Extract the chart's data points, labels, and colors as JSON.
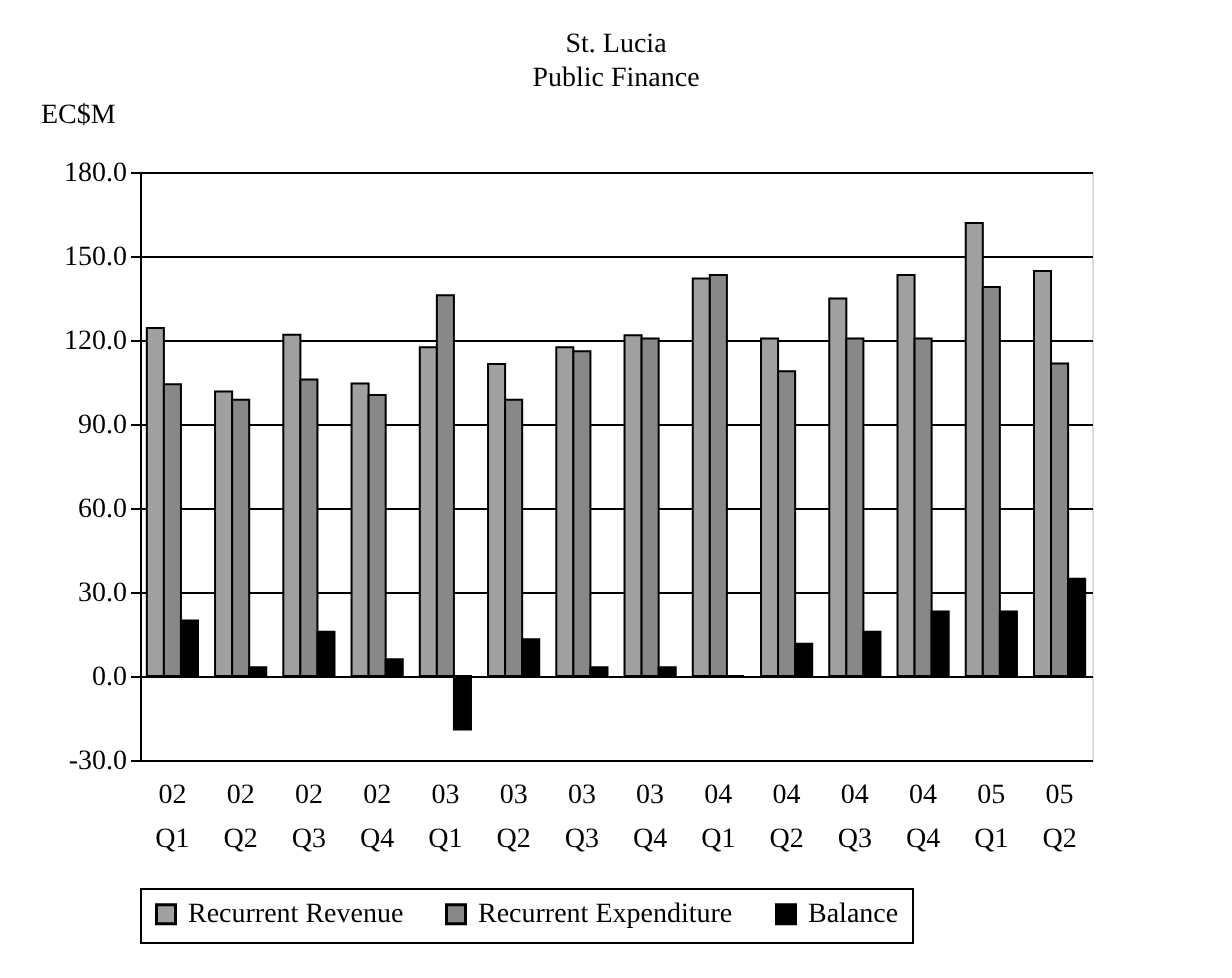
{
  "chart_data": {
    "type": "bar",
    "title": "St. Lucia",
    "subtitle": "Public Finance",
    "ylabel": "EC$M",
    "categories": [
      "02 Q1",
      "02 Q2",
      "02 Q3",
      "02 Q4",
      "03 Q1",
      "03 Q2",
      "03 Q3",
      "03 Q4",
      "04 Q1",
      "04 Q2",
      "04 Q3",
      "04 Q4",
      "05 Q1",
      "05 Q2"
    ],
    "series": [
      {
        "name": "Recurrent Revenue",
        "color": "#a0a0a0",
        "values": [
          124.3,
          101.6,
          121.9,
          104.5,
          117.4,
          111.4,
          117.4,
          121.7,
          142.0,
          120.5,
          134.8,
          143.2,
          161.8,
          144.6
        ]
      },
      {
        "name": "Recurrent Expenditure",
        "color": "#888888",
        "values": [
          104.2,
          98.7,
          105.9,
          100.4,
          136.0,
          98.7,
          116.0,
          120.5,
          143.2,
          108.8,
          120.5,
          120.5,
          138.9,
          111.6
        ]
      },
      {
        "name": "Balance",
        "color": "#000000",
        "values": [
          19.8,
          3.1,
          15.8,
          6.0,
          -19.1,
          13.1,
          3.1,
          3.1,
          0.0,
          11.5,
          15.8,
          23.0,
          23.0,
          34.7
        ]
      }
    ],
    "ylim": [
      -30,
      180
    ],
    "yticks": [
      {
        "value": -30,
        "label": "-30.0"
      },
      {
        "value": 0,
        "label": "0.0"
      },
      {
        "value": 30,
        "label": "30.0"
      },
      {
        "value": 60,
        "label": "60.0"
      },
      {
        "value": 90,
        "label": "90.0"
      },
      {
        "value": 120,
        "label": "120.0"
      },
      {
        "value": 150,
        "label": "150.0"
      },
      {
        "value": 180,
        "label": "180.0"
      }
    ],
    "grid": "y",
    "legend": "bottom"
  }
}
